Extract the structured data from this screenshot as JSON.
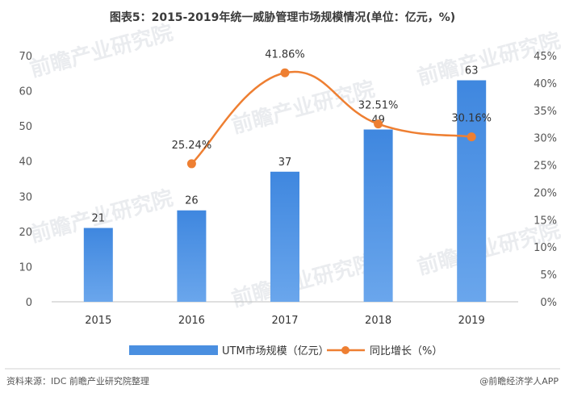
{
  "chart_data": {
    "type": "bar+line",
    "title": "图表5：2015-2019年统一威胁管理市场规模情况(单位：亿元，%)",
    "categories": [
      "2015",
      "2016",
      "2017",
      "2018",
      "2019"
    ],
    "series": [
      {
        "name": "UTM市场规模（亿元）",
        "type": "bar",
        "axis": "left",
        "values": [
          21,
          26,
          37,
          49,
          63
        ],
        "labels": [
          "21",
          "26",
          "37",
          "49",
          "63"
        ]
      },
      {
        "name": "同比增长（%）",
        "type": "line",
        "axis": "right",
        "values": [
          null,
          25.24,
          41.86,
          32.51,
          30.16
        ],
        "labels": [
          "",
          "25.24%",
          "41.86%",
          "32.51%",
          "30.16%"
        ]
      }
    ],
    "y_left": {
      "min": 0,
      "max": 70,
      "step": 10,
      "ticks": [
        "0",
        "10",
        "20",
        "30",
        "40",
        "50",
        "60",
        "70"
      ]
    },
    "y_right": {
      "min": 0,
      "max": 45,
      "step": 5,
      "ticks": [
        "0%",
        "5%",
        "10%",
        "15%",
        "20%",
        "25%",
        "30%",
        "35%",
        "40%",
        "45%"
      ]
    },
    "grid": false,
    "legend_position": "bottom-center",
    "colors": {
      "bar": "#4a8fe0",
      "line": "#ee7f32",
      "title": "#3a3a3a"
    }
  },
  "footer": {
    "source": "资料来源：IDC 前瞻产业研究院整理",
    "brand": "@前瞻经济学人APP"
  },
  "watermark": "前瞻产业研究院"
}
